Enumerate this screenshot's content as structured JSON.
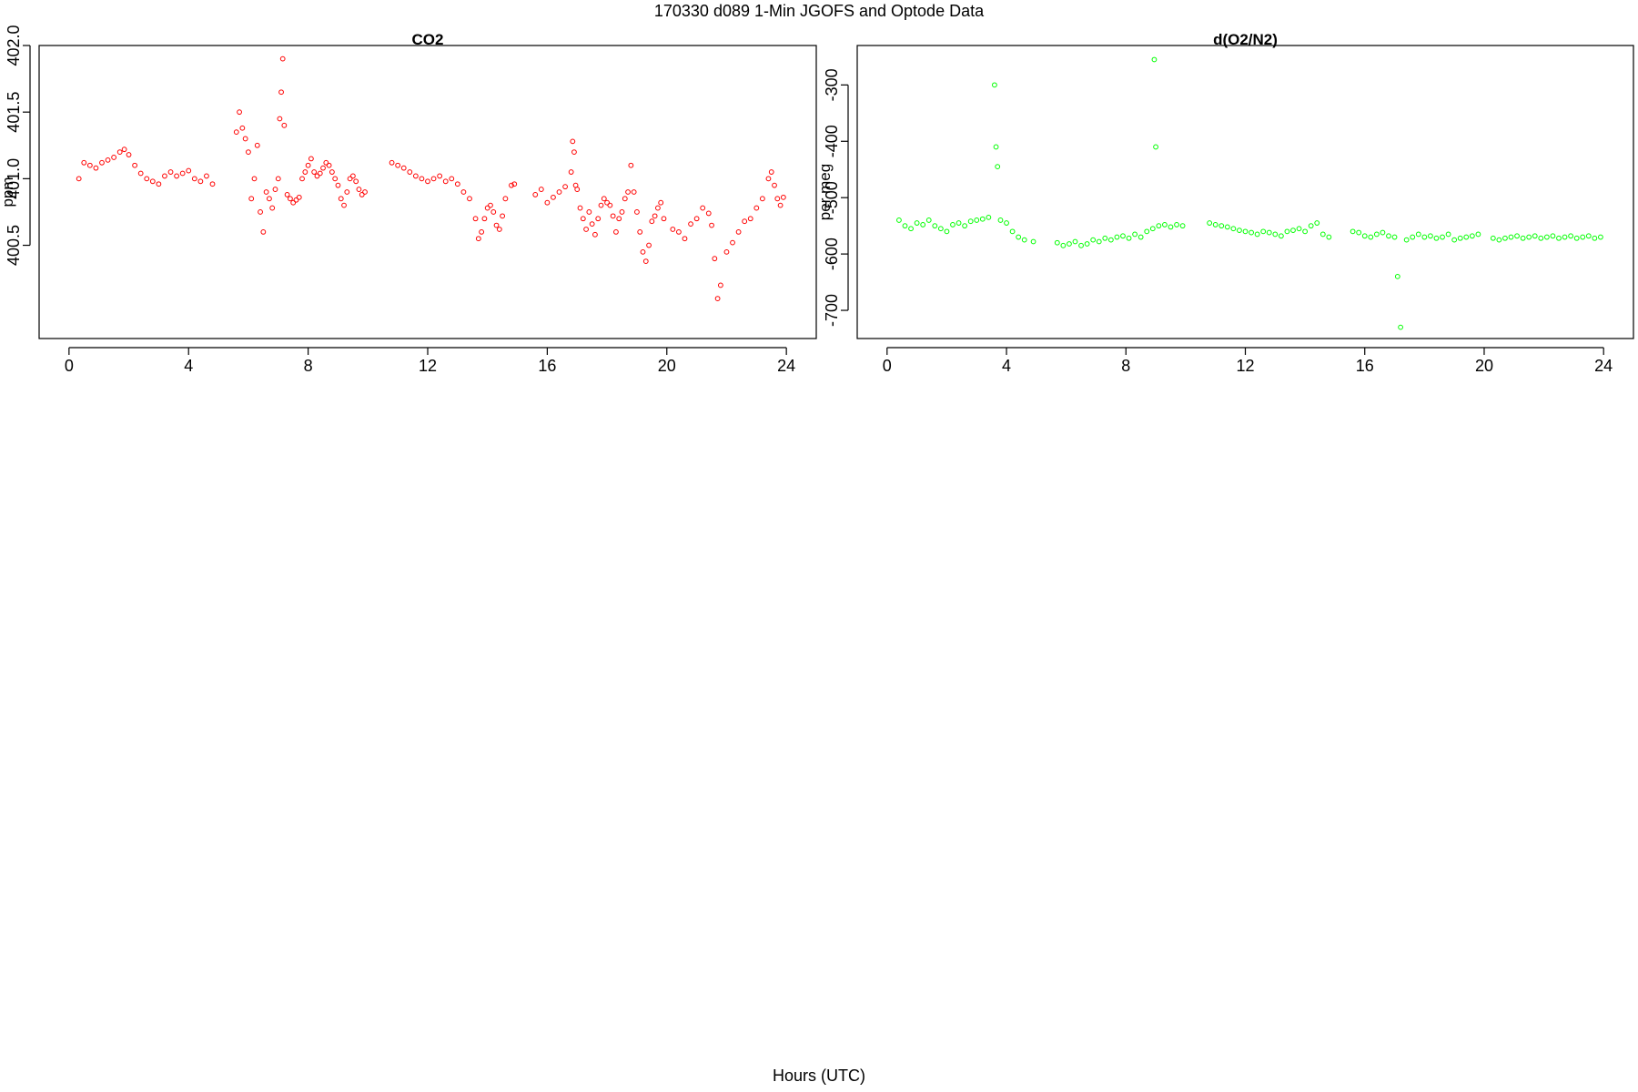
{
  "figure": {
    "title": "170330   d089   1-Min  JGOFS and Optode Data",
    "xlabel": "Hours (UTC)"
  },
  "chart_data": [
    {
      "type": "scatter",
      "title": "CO2",
      "xlabel": "",
      "ylabel": "ppm",
      "xlim": [
        -1,
        25
      ],
      "ylim": [
        399.8,
        402.0
      ],
      "xticks": [
        0,
        4,
        8,
        12,
        16,
        20,
        24
      ],
      "yticks": [
        400.5,
        401.0,
        401.5,
        402.0
      ],
      "ytick_labels": [
        "400.5",
        "401.0",
        "401.5",
        "402.0"
      ],
      "color": "#ff0000",
      "grid": false,
      "series": [
        {
          "x": [
            0.33,
            0.5,
            0.7,
            0.9,
            1.1,
            1.3,
            1.5,
            1.7,
            1.85,
            2.0,
            2.2,
            2.4,
            2.6,
            2.8,
            3.0,
            3.2,
            3.4,
            3.6,
            3.8,
            4.0,
            4.2,
            4.4,
            4.6,
            4.8,
            5.6,
            5.7,
            5.8,
            5.9,
            6.0,
            6.1,
            6.2,
            6.3,
            6.4,
            6.5,
            6.6,
            6.7,
            6.8,
            6.9,
            7.0,
            7.05,
            7.1,
            7.15,
            7.2,
            7.3,
            7.4,
            7.5,
            7.6,
            7.7,
            7.8,
            7.9,
            8.0,
            8.1,
            8.2,
            8.3,
            8.4,
            8.5,
            8.6,
            8.7,
            8.8,
            8.9,
            9.0,
            9.1,
            9.2,
            9.3,
            9.4,
            9.5,
            9.6,
            9.7,
            9.8,
            9.9,
            10.8,
            11.0,
            11.2,
            11.4,
            11.6,
            11.8,
            12.0,
            12.2,
            12.4,
            12.6,
            12.8,
            13.0,
            13.2,
            13.4,
            13.6,
            13.7,
            13.8,
            13.9,
            14.0,
            14.1,
            14.2,
            14.3,
            14.4,
            14.5,
            14.6,
            14.8,
            14.9,
            15.6,
            15.8,
            16.0,
            16.2,
            16.4,
            16.6,
            16.8,
            16.85,
            16.9,
            16.95,
            17.0,
            17.1,
            17.2,
            17.3,
            17.4,
            17.5,
            17.6,
            17.7,
            17.8,
            17.9,
            18.0,
            18.1,
            18.2,
            18.3,
            18.4,
            18.5,
            18.6,
            18.7,
            18.8,
            18.9,
            19.0,
            19.1,
            19.2,
            19.3,
            19.4,
            19.5,
            19.6,
            19.7,
            19.8,
            19.9,
            20.2,
            20.4,
            20.6,
            20.8,
            21.0,
            21.2,
            21.4,
            21.5,
            21.6,
            21.7,
            21.8,
            22.0,
            22.2,
            22.4,
            22.6,
            22.8,
            23.0,
            23.2,
            23.4,
            23.5,
            23.6,
            23.7,
            23.8,
            23.9
          ],
          "y": [
            401.0,
            401.12,
            401.1,
            401.08,
            401.12,
            401.14,
            401.16,
            401.2,
            401.22,
            401.18,
            401.1,
            401.04,
            401.0,
            400.98,
            400.96,
            401.02,
            401.05,
            401.02,
            401.04,
            401.06,
            401.0,
            400.98,
            401.02,
            400.96,
            401.35,
            401.5,
            401.38,
            401.3,
            401.2,
            400.85,
            401.0,
            401.25,
            400.75,
            400.6,
            400.9,
            400.85,
            400.78,
            400.92,
            401.0,
            401.45,
            401.65,
            401.9,
            401.4,
            400.88,
            400.85,
            400.82,
            400.84,
            400.86,
            401.0,
            401.05,
            401.1,
            401.15,
            401.05,
            401.02,
            401.04,
            401.08,
            401.12,
            401.1,
            401.05,
            401.0,
            400.95,
            400.85,
            400.8,
            400.9,
            401.0,
            401.02,
            400.98,
            400.92,
            400.88,
            400.9,
            401.12,
            401.1,
            401.08,
            401.05,
            401.02,
            401.0,
            400.98,
            401.0,
            401.02,
            400.98,
            401.0,
            400.96,
            400.9,
            400.85,
            400.7,
            400.55,
            400.6,
            400.7,
            400.78,
            400.8,
            400.75,
            400.65,
            400.62,
            400.72,
            400.85,
            400.95,
            400.96,
            400.88,
            400.92,
            400.82,
            400.86,
            400.9,
            400.94,
            401.05,
            401.28,
            401.2,
            400.95,
            400.92,
            400.78,
            400.7,
            400.62,
            400.75,
            400.66,
            400.58,
            400.7,
            400.8,
            400.85,
            400.82,
            400.8,
            400.72,
            400.6,
            400.7,
            400.75,
            400.85,
            400.9,
            401.1,
            400.9,
            400.75,
            400.6,
            400.45,
            400.38,
            400.5,
            400.68,
            400.72,
            400.78,
            400.82,
            400.7,
            400.62,
            400.6,
            400.55,
            400.66,
            400.7,
            400.78,
            400.74,
            400.65,
            400.4,
            400.1,
            400.2,
            400.45,
            400.52,
            400.6,
            400.68,
            400.7,
            400.78,
            400.85,
            401.0,
            401.05,
            400.95,
            400.85,
            400.8,
            400.86
          ]
        }
      ]
    },
    {
      "type": "scatter",
      "title": "d(O2/N2)",
      "xlabel": "",
      "ylabel": "per meg",
      "xlim": [
        -1,
        25
      ],
      "ylim": [
        -750,
        -230
      ],
      "xticks": [
        0,
        4,
        8,
        12,
        16,
        20,
        24
      ],
      "yticks": [
        -700,
        -600,
        -500,
        -400,
        -300
      ],
      "ytick_labels": [
        "-700",
        "-600",
        "-500",
        "-400",
        "-300"
      ],
      "color": "#00ff00",
      "grid": false,
      "series": [
        {
          "x": [
            0.4,
            0.6,
            0.8,
            1.0,
            1.2,
            1.4,
            1.6,
            1.8,
            2.0,
            2.2,
            2.4,
            2.6,
            2.8,
            3.0,
            3.2,
            3.4,
            3.6,
            3.65,
            3.7,
            3.8,
            4.0,
            4.2,
            4.4,
            4.6,
            4.9,
            5.7,
            5.9,
            6.1,
            6.3,
            6.5,
            6.7,
            6.9,
            7.1,
            7.3,
            7.5,
            7.7,
            7.9,
            8.1,
            8.3,
            8.5,
            8.7,
            8.9,
            8.95,
            9.0,
            9.1,
            9.3,
            9.5,
            9.7,
            9.9,
            10.8,
            11.0,
            11.2,
            11.4,
            11.6,
            11.8,
            12.0,
            12.2,
            12.4,
            12.6,
            12.8,
            13.0,
            13.2,
            13.4,
            13.6,
            13.8,
            14.0,
            14.2,
            14.4,
            14.6,
            14.8,
            15.6,
            15.8,
            16.0,
            16.2,
            16.4,
            16.6,
            16.8,
            17.0,
            17.1,
            17.2,
            17.4,
            17.6,
            17.8,
            18.0,
            18.2,
            18.4,
            18.6,
            18.8,
            19.0,
            19.2,
            19.4,
            19.6,
            19.8,
            20.3,
            20.5,
            20.7,
            20.9,
            21.1,
            21.3,
            21.5,
            21.7,
            21.9,
            22.1,
            22.3,
            22.5,
            22.7,
            22.9,
            23.1,
            23.3,
            23.5,
            23.7,
            23.9
          ],
          "y": [
            -540,
            -550,
            -555,
            -545,
            -548,
            -540,
            -550,
            -555,
            -560,
            -548,
            -545,
            -550,
            -542,
            -540,
            -538,
            -535,
            -300,
            -410,
            -445,
            -540,
            -545,
            -560,
            -570,
            -575,
            -578,
            -580,
            -585,
            -582,
            -578,
            -585,
            -582,
            -575,
            -578,
            -572,
            -575,
            -570,
            -568,
            -572,
            -565,
            -570,
            -560,
            -555,
            -255,
            -410,
            -550,
            -548,
            -552,
            -548,
            -550,
            -545,
            -548,
            -550,
            -552,
            -555,
            -558,
            -560,
            -562,
            -565,
            -560,
            -562,
            -565,
            -568,
            -560,
            -558,
            -555,
            -560,
            -550,
            -545,
            -565,
            -570,
            -560,
            -562,
            -568,
            -570,
            -565,
            -562,
            -568,
            -570,
            -640,
            -730,
            -575,
            -570,
            -565,
            -570,
            -568,
            -572,
            -570,
            -565,
            -575,
            -572,
            -570,
            -568,
            -565,
            -572,
            -575,
            -572,
            -570,
            -568,
            -572,
            -570,
            -568,
            -572,
            -570,
            -568,
            -572,
            -570,
            -568,
            -572,
            -570,
            -568,
            -572,
            -570
          ]
        }
      ]
    }
  ]
}
